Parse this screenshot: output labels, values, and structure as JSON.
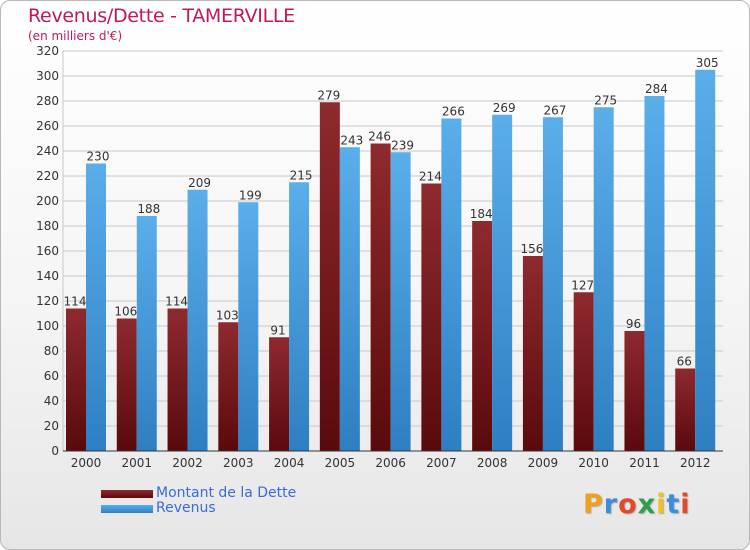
{
  "title": "Revenus/Dette - TAMERVILLE",
  "subtitle": "(en milliers d'€)",
  "colors": {
    "dette_top": "#8e2a2e",
    "dette_bottom": "#5a0a0c",
    "revenus_top": "#5aaeea",
    "revenus_bottom": "#2e7fc2",
    "title": "#c2185b",
    "legend_text": "#3a6bd6"
  },
  "chart_data": {
    "type": "bar",
    "categories": [
      "2000",
      "2001",
      "2002",
      "2003",
      "2004",
      "2005",
      "2006",
      "2007",
      "2008",
      "2009",
      "2010",
      "2011",
      "2012"
    ],
    "series": [
      {
        "name": "Montant de la Dette",
        "values": [
          114,
          106,
          114,
          103,
          91,
          279,
          246,
          214,
          184,
          156,
          127,
          96,
          66
        ]
      },
      {
        "name": "Revenus",
        "values": [
          230,
          188,
          209,
          199,
          215,
          243,
          239,
          266,
          269,
          267,
          275,
          284,
          305
        ]
      }
    ],
    "ylim": [
      0,
      320
    ],
    "yticks": [
      0,
      20,
      40,
      60,
      80,
      100,
      120,
      140,
      160,
      180,
      200,
      220,
      240,
      260,
      280,
      300,
      320
    ],
    "grid": true,
    "legend_position": "bottom-left"
  },
  "legend": {
    "items": [
      {
        "label": "Montant de la Dette"
      },
      {
        "label": "Revenus"
      }
    ]
  },
  "logo": {
    "letters": [
      "P",
      "r",
      "o",
      "x",
      "i",
      "t",
      "i"
    ],
    "colors": [
      "#f0a020",
      "#3a8fd8",
      "#e04a2a",
      "#2e9e4a",
      "#f0c020",
      "#3a8fd8",
      "#e04a2a"
    ]
  }
}
